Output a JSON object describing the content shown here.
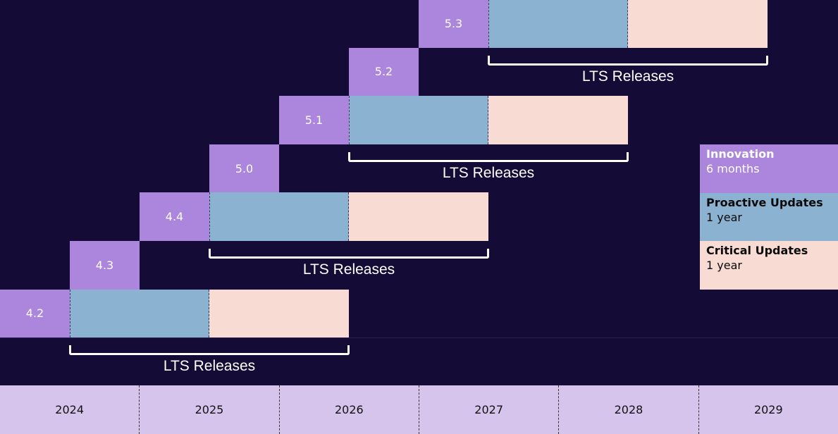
{
  "releases": [
    {
      "version": "5.3",
      "has_lts": true
    },
    {
      "version": "5.2",
      "has_lts": false
    },
    {
      "version": "5.1",
      "has_lts": true
    },
    {
      "version": "5.0",
      "has_lts": false
    },
    {
      "version": "4.4",
      "has_lts": true
    },
    {
      "version": "4.3",
      "has_lts": false
    },
    {
      "version": "4.2",
      "has_lts": true
    }
  ],
  "lts_label": "LTS Releases",
  "legend": [
    {
      "title": "Innovation",
      "sub": "6 months",
      "color": "#ab86dc",
      "text_color": "#ffffff"
    },
    {
      "title": "Proactive Updates",
      "sub": "1 year",
      "color": "#8bb3d1",
      "text_color": "#0a0a0a"
    },
    {
      "title": "Critical Updates",
      "sub": "1 year",
      "color": "#f8dbd3",
      "text_color": "#0a0a0a"
    }
  ],
  "years": [
    "2024",
    "2025",
    "2026",
    "2027",
    "2028",
    "2029"
  ],
  "colors": {
    "background": "#150b37",
    "innovation": "#ab86dc",
    "proactive": "#8bb3d1",
    "critical": "#f8dbd3",
    "axis": "#d6c4ec"
  }
}
